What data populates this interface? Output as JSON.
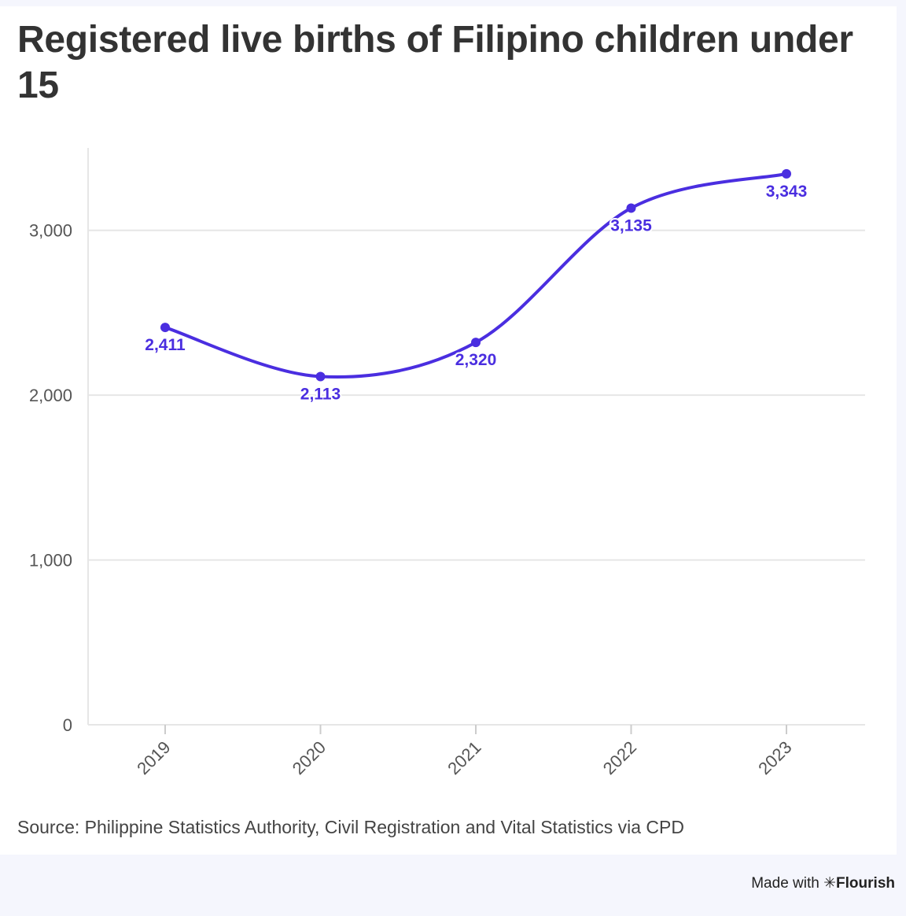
{
  "chart_data": {
    "type": "line",
    "title": "Registered live births of Filipino children under 15",
    "x": [
      "2019",
      "2020",
      "2021",
      "2022",
      "2023"
    ],
    "series": [
      {
        "values": [
          2411,
          2113,
          2320,
          3135,
          3343
        ],
        "data_labels": [
          "2,411",
          "2,113",
          "2,320",
          "3,135",
          "3,343"
        ],
        "color": "#4a2ee0"
      }
    ],
    "ylim": [
      0,
      3500
    ],
    "yticks": [
      0,
      1000,
      2000,
      3000
    ],
    "ytick_labels": [
      "0",
      "1,000",
      "2,000",
      "3,000"
    ],
    "grid": true,
    "curve": "smooth",
    "source": "Source: Philippine Statistics Authority, Civil Registration and Vital Statistics via CPD"
  },
  "credit": {
    "prefix": "Made with",
    "icon": "asterisk-icon",
    "brand": "Flourish"
  },
  "colors": {
    "line": "#4a2ee0",
    "grid": "#e6e6e6",
    "axis_text": "#555555",
    "title": "#333333",
    "page_bg": "#f5f6fd"
  }
}
